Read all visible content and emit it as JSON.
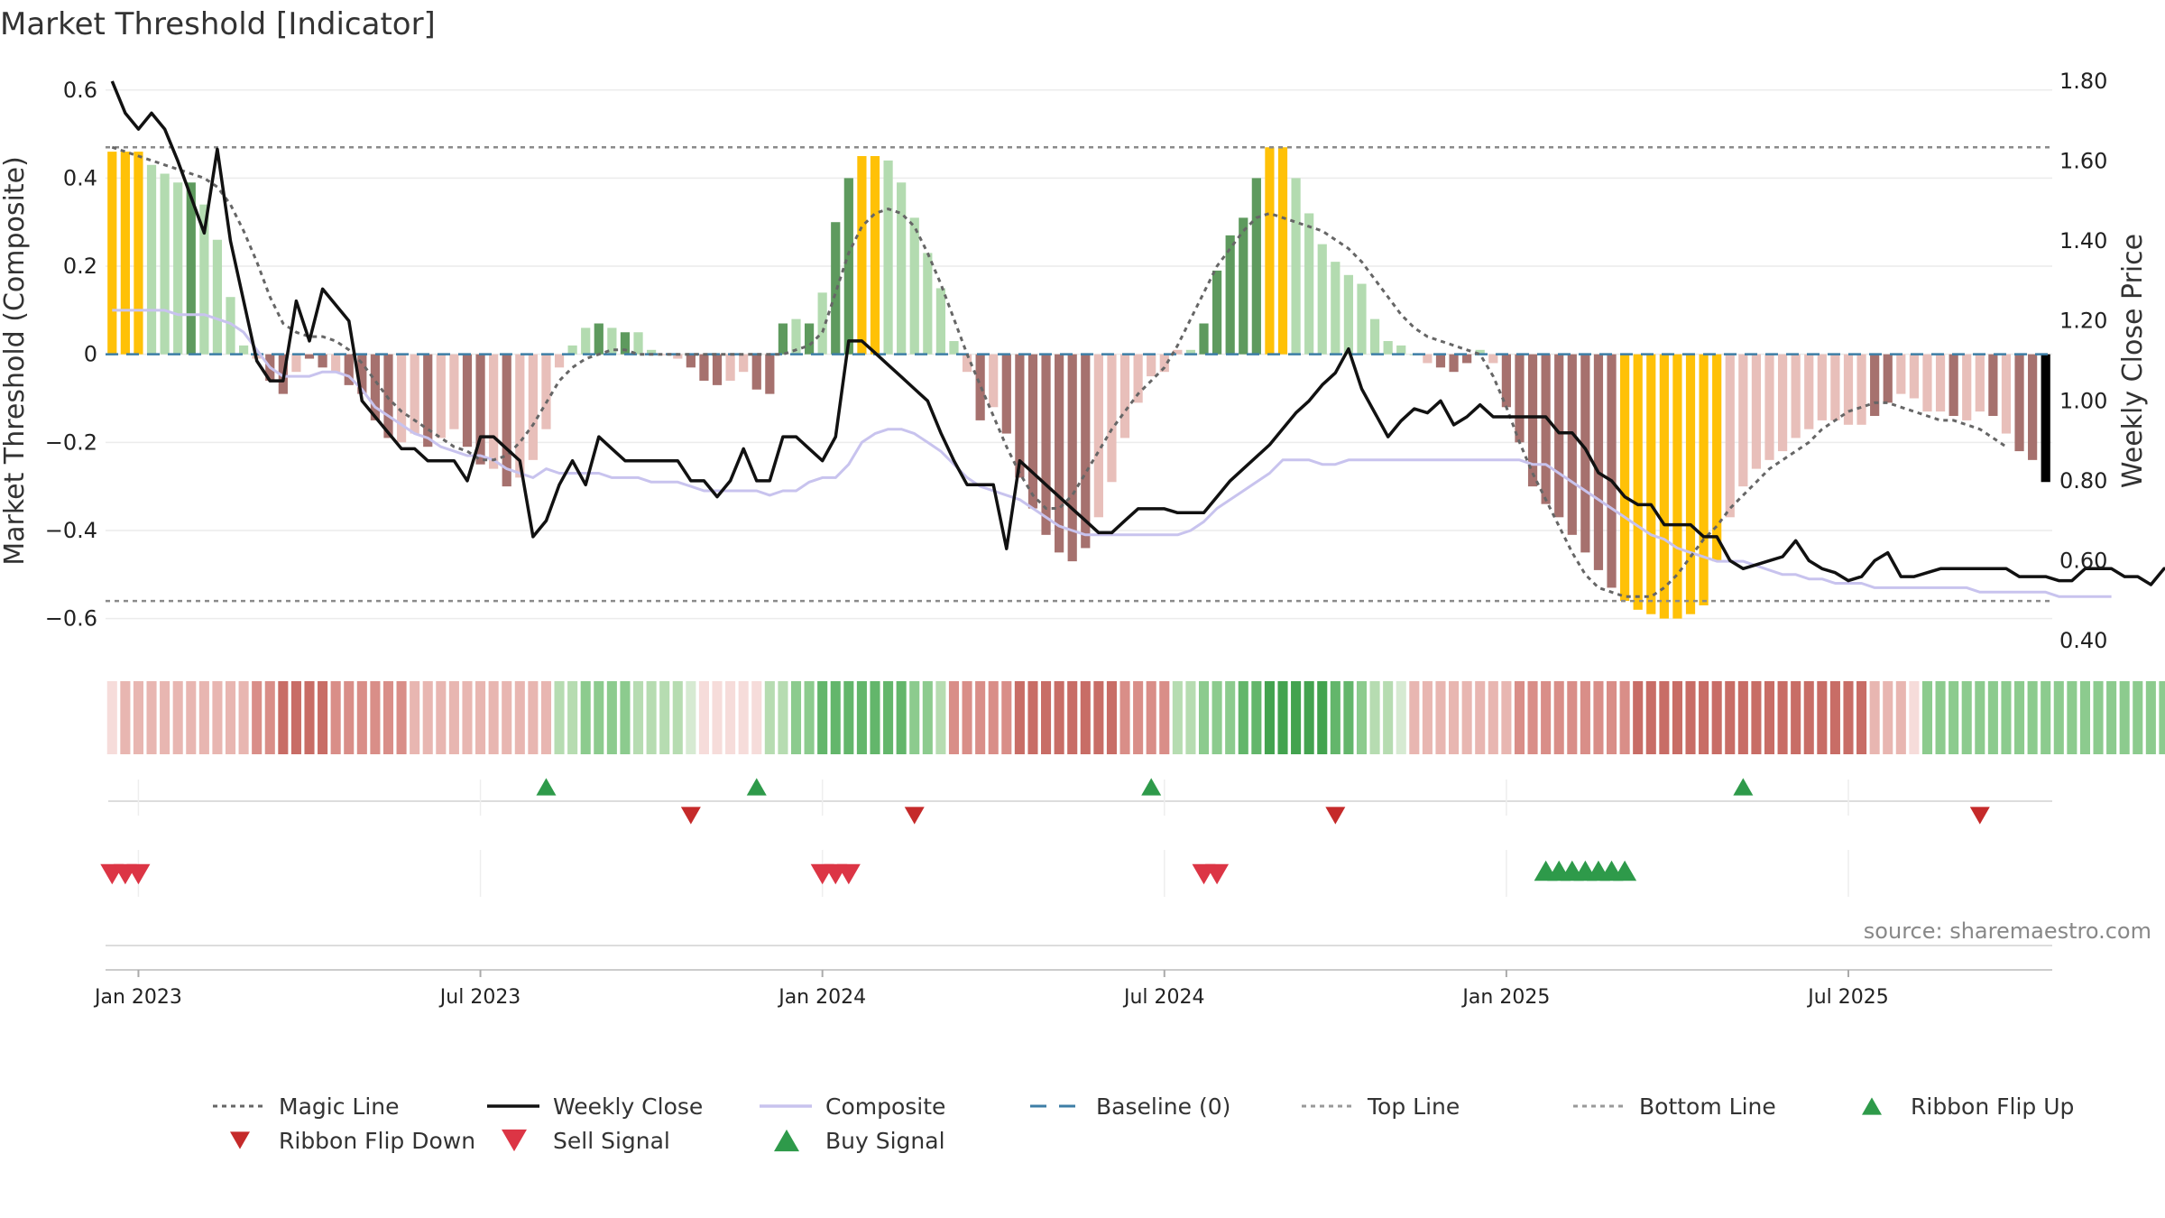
{
  "chart_data": {
    "type": "bar",
    "title": "Market Threshold [Indicator]",
    "ylabel_left": "Market Threshold (Composite)",
    "ylabel_right": "Weekly Close Price",
    "ylim_left": [
      -0.65,
      0.62
    ],
    "ylim_right": [
      0.4,
      1.8
    ],
    "yticks_left": [
      0.6,
      0.4,
      0.2,
      0,
      -0.2,
      -0.4,
      -0.6
    ],
    "ytick_labels_left": [
      "0.6",
      "0.4",
      "0.2",
      "0",
      "−0.2",
      "−0.4",
      "−0.6"
    ],
    "yticks_right": [
      1.8,
      1.6,
      1.4,
      1.2,
      1.0,
      0.8,
      0.6,
      0.4
    ],
    "ytick_labels_right": [
      "1.80",
      "1.60",
      "1.40",
      "1.20",
      "1.00",
      "0.80",
      "0.60",
      "0.40"
    ],
    "xticks": [
      {
        "week": 2,
        "label": "Jan 2023"
      },
      {
        "week": 28,
        "label": "Jul 2023"
      },
      {
        "week": 54,
        "label": "Jan 2024"
      },
      {
        "week": 80,
        "label": "Jul 2024"
      },
      {
        "week": 106,
        "label": "Jan 2025"
      },
      {
        "week": 132,
        "label": "Jul 2025"
      }
    ],
    "top_line": 0.47,
    "bottom_line": -0.56,
    "baseline": 0,
    "bar_category_colors": {
      "0": "#b3dbb0",
      "1": "#5e9a5e",
      "2": "#e8bfba",
      "3": "#a6716e",
      "4": "#ffc107"
    },
    "bars": [
      0.46,
      0.46,
      0.46,
      0.43,
      0.41,
      0.39,
      0.39,
      0.34,
      0.26,
      0.13,
      0.02,
      -0.01,
      -0.06,
      -0.09,
      -0.04,
      -0.01,
      -0.03,
      -0.04,
      -0.07,
      -0.09,
      -0.15,
      -0.19,
      -0.2,
      -0.18,
      -0.21,
      -0.19,
      -0.17,
      -0.21,
      -0.25,
      -0.26,
      -0.3,
      -0.28,
      -0.24,
      -0.17,
      -0.03,
      0.02,
      0.06,
      0.07,
      0.06,
      0.05,
      0.05,
      0.01,
      0,
      -0.01,
      -0.03,
      -0.06,
      -0.07,
      -0.06,
      -0.04,
      -0.08,
      -0.09,
      0.07,
      0.08,
      0.07,
      0.14,
      0.3,
      0.4,
      0.45,
      0.45,
      0.44,
      0.39,
      0.31,
      0.23,
      0.15,
      0.03,
      -0.04,
      -0.15,
      -0.12,
      -0.18,
      -0.28,
      -0.35,
      -0.41,
      -0.45,
      -0.47,
      -0.44,
      -0.37,
      -0.29,
      -0.19,
      -0.11,
      -0.05,
      -0.04,
      0.01,
      0.01,
      0.07,
      0.19,
      0.27,
      0.31,
      0.4,
      0.47,
      0.47,
      0.4,
      0.32,
      0.25,
      0.21,
      0.18,
      0.16,
      0.08,
      0.03,
      0.02,
      0,
      -0.02,
      -0.03,
      -0.04,
      -0.02,
      0.01,
      -0.02,
      -0.12,
      -0.2,
      -0.3,
      -0.34,
      -0.37,
      -0.41,
      -0.45,
      -0.49,
      -0.53,
      -0.56,
      -0.58,
      -0.59,
      -0.6,
      -0.6,
      -0.59,
      -0.57,
      -0.47,
      -0.37,
      -0.3,
      -0.26,
      -0.24,
      -0.22,
      -0.19,
      -0.17,
      -0.15,
      -0.15,
      -0.16,
      -0.16,
      -0.14,
      -0.11,
      -0.09,
      -0.1,
      -0.13,
      -0.13,
      -0.14,
      -0.15,
      -0.13,
      -0.14,
      -0.18,
      -0.22,
      -0.24,
      -0.29
    ],
    "bar_categories": [
      4,
      4,
      4,
      0,
      0,
      0,
      1,
      0,
      0,
      0,
      0,
      2,
      3,
      3,
      2,
      3,
      3,
      2,
      3,
      3,
      3,
      3,
      2,
      2,
      3,
      2,
      2,
      3,
      3,
      2,
      3,
      2,
      2,
      2,
      2,
      0,
      0,
      1,
      0,
      1,
      0,
      0,
      2,
      2,
      3,
      3,
      3,
      2,
      2,
      3,
      3,
      1,
      0,
      1,
      0,
      1,
      1,
      4,
      4,
      0,
      0,
      0,
      0,
      0,
      0,
      2,
      3,
      2,
      3,
      3,
      3,
      3,
      3,
      3,
      3,
      2,
      2,
      2,
      2,
      2,
      2,
      2,
      0,
      1,
      1,
      1,
      1,
      1,
      4,
      4,
      0,
      0,
      0,
      0,
      0,
      0,
      0,
      0,
      0,
      0,
      2,
      3,
      3,
      3,
      0,
      2,
      3,
      3,
      3,
      3,
      3,
      3,
      3,
      3,
      3,
      4,
      4,
      4,
      4,
      4,
      4,
      4,
      4,
      2,
      2,
      2,
      2,
      2,
      2,
      2,
      2,
      2,
      2,
      2,
      3,
      3,
      2,
      2,
      2,
      2,
      3,
      2,
      2,
      3,
      2,
      3,
      3
    ],
    "series": [
      {
        "name": "Magic Line",
        "axis": "left",
        "values": [
          0.47,
          0.46,
          0.45,
          0.44,
          0.43,
          0.42,
          0.41,
          0.4,
          0.38,
          0.34,
          0.28,
          0.21,
          0.13,
          0.07,
          0.05,
          0.04,
          0.04,
          0.03,
          0.01,
          -0.02,
          -0.06,
          -0.1,
          -0.13,
          -0.15,
          -0.17,
          -0.19,
          -0.21,
          -0.22,
          -0.24,
          -0.24,
          -0.23,
          -0.2,
          -0.16,
          -0.11,
          -0.06,
          -0.03,
          -0.01,
          0,
          0.01,
          0.01,
          0,
          0,
          0,
          0,
          0,
          0,
          0,
          0,
          0,
          0,
          0,
          0,
          0.01,
          0.02,
          0.05,
          0.14,
          0.23,
          0.29,
          0.32,
          0.33,
          0.32,
          0.29,
          0.23,
          0.16,
          0.08,
          0,
          -0.07,
          -0.14,
          -0.21,
          -0.27,
          -0.32,
          -0.35,
          -0.35,
          -0.32,
          -0.27,
          -0.22,
          -0.17,
          -0.13,
          -0.09,
          -0.06,
          -0.03,
          0.02,
          0.08,
          0.14,
          0.2,
          0.24,
          0.28,
          0.31,
          0.32,
          0.31,
          0.3,
          0.29,
          0.28,
          0.26,
          0.24,
          0.21,
          0.17,
          0.13,
          0.09,
          0.06,
          0.04,
          0.03,
          0.02,
          0.01,
          0,
          -0.05,
          -0.12,
          -0.2,
          -0.27,
          -0.33,
          -0.39,
          -0.45,
          -0.5,
          -0.53,
          -0.54,
          -0.55,
          -0.55,
          -0.55,
          -0.53,
          -0.5,
          -0.46,
          -0.42,
          -0.39,
          -0.35,
          -0.32,
          -0.29,
          -0.26,
          -0.24,
          -0.22,
          -0.2,
          -0.17,
          -0.15,
          -0.13,
          -0.12,
          -0.11,
          -0.11,
          -0.12,
          -0.13,
          -0.14,
          -0.15,
          -0.15,
          -0.16,
          -0.17,
          -0.19,
          -0.21
        ]
      },
      {
        "name": "Weekly Close",
        "axis": "right",
        "values": [
          1.8,
          1.72,
          1.68,
          1.72,
          1.68,
          1.6,
          1.51,
          1.42,
          1.63,
          1.4,
          1.25,
          1.1,
          1.05,
          1.05,
          1.25,
          1.15,
          1.28,
          1.24,
          1.2,
          1.0,
          0.96,
          0.92,
          0.88,
          0.88,
          0.85,
          0.85,
          0.85,
          0.8,
          0.91,
          0.91,
          0.88,
          0.85,
          0.66,
          0.7,
          0.79,
          0.85,
          0.79,
          0.91,
          0.88,
          0.85,
          0.85,
          0.85,
          0.85,
          0.85,
          0.8,
          0.8,
          0.76,
          0.8,
          0.88,
          0.8,
          0.8,
          0.91,
          0.91,
          0.88,
          0.85,
          0.91,
          1.15,
          1.15,
          1.12,
          1.09,
          1.06,
          1.03,
          1.0,
          0.92,
          0.85,
          0.79,
          0.79,
          0.79,
          0.63,
          0.85,
          0.82,
          0.79,
          0.76,
          0.73,
          0.7,
          0.67,
          0.67,
          0.7,
          0.73,
          0.73,
          0.73,
          0.72,
          0.72,
          0.72,
          0.76,
          0.8,
          0.83,
          0.86,
          0.89,
          0.93,
          0.97,
          1.0,
          1.04,
          1.07,
          1.13,
          1.03,
          0.97,
          0.91,
          0.95,
          0.98,
          0.97,
          1.0,
          0.94,
          0.96,
          0.99,
          0.96,
          0.96,
          0.96,
          0.96,
          0.96,
          0.92,
          0.92,
          0.88,
          0.82,
          0.8,
          0.76,
          0.74,
          0.74,
          0.69,
          0.69,
          0.69,
          0.66,
          0.66,
          0.6,
          0.58,
          0.59,
          0.6,
          0.61,
          0.65,
          0.6,
          0.58,
          0.57,
          0.55,
          0.56,
          0.6,
          0.62,
          0.56,
          0.56,
          0.57,
          0.58,
          0.58,
          0.58,
          0.58,
          0.58,
          0.58,
          0.56,
          0.56,
          0.56,
          0.55,
          0.55,
          0.58,
          0.58,
          0.58,
          0.56,
          0.56,
          0.54,
          0.58,
          0.58
        ]
      },
      {
        "name": "Composite",
        "axis": "left",
        "values": [
          0.1,
          0.1,
          0.1,
          0.1,
          0.1,
          0.09,
          0.09,
          0.09,
          0.08,
          0.07,
          0.05,
          0.01,
          -0.03,
          -0.05,
          -0.05,
          -0.05,
          -0.04,
          -0.04,
          -0.05,
          -0.08,
          -0.12,
          -0.14,
          -0.16,
          -0.18,
          -0.19,
          -0.21,
          -0.22,
          -0.23,
          -0.23,
          -0.24,
          -0.26,
          -0.27,
          -0.28,
          -0.26,
          -0.27,
          -0.27,
          -0.27,
          -0.27,
          -0.28,
          -0.28,
          -0.28,
          -0.29,
          -0.29,
          -0.29,
          -0.3,
          -0.31,
          -0.31,
          -0.31,
          -0.31,
          -0.31,
          -0.32,
          -0.31,
          -0.31,
          -0.29,
          -0.28,
          -0.28,
          -0.25,
          -0.2,
          -0.18,
          -0.17,
          -0.17,
          -0.18,
          -0.2,
          -0.22,
          -0.25,
          -0.28,
          -0.3,
          -0.31,
          -0.32,
          -0.33,
          -0.35,
          -0.37,
          -0.39,
          -0.4,
          -0.41,
          -0.41,
          -0.41,
          -0.41,
          -0.41,
          -0.41,
          -0.41,
          -0.41,
          -0.4,
          -0.38,
          -0.35,
          -0.33,
          -0.31,
          -0.29,
          -0.27,
          -0.24,
          -0.24,
          -0.24,
          -0.25,
          -0.25,
          -0.24,
          -0.24,
          -0.24,
          -0.24,
          -0.24,
          -0.24,
          -0.24,
          -0.24,
          -0.24,
          -0.24,
          -0.24,
          -0.24,
          -0.24,
          -0.24,
          -0.25,
          -0.25,
          -0.27,
          -0.29,
          -0.31,
          -0.33,
          -0.35,
          -0.37,
          -0.39,
          -0.41,
          -0.42,
          -0.44,
          -0.45,
          -0.46,
          -0.47,
          -0.47,
          -0.47,
          -0.48,
          -0.49,
          -0.5,
          -0.5,
          -0.51,
          -0.51,
          -0.52,
          -0.52,
          -0.52,
          -0.53,
          -0.53,
          -0.53,
          -0.53,
          -0.53,
          -0.53,
          -0.53,
          -0.53,
          -0.54,
          -0.54,
          -0.54,
          -0.54,
          -0.54,
          -0.54,
          -0.55,
          -0.55,
          -0.55,
          -0.55,
          -0.55
        ]
      },
      {
        "name": "Baseline (0)",
        "axis": "left",
        "values": [
          0
        ]
      },
      {
        "name": "Top Line",
        "axis": "left",
        "values": [
          0.47
        ]
      },
      {
        "name": "Bottom Line",
        "axis": "left",
        "values": [
          -0.56
        ]
      }
    ],
    "ribbon_palette": [
      "#f6dcda",
      "#e8b6b1",
      "#d98e88",
      "#c86d66",
      "#d6ead2",
      "#b6dcb1",
      "#8ccb8e",
      "#63b66b",
      "#43a34f"
    ],
    "ribbon_levels": [
      0,
      1,
      1,
      1,
      1,
      1,
      1,
      1,
      1,
      1,
      1,
      2,
      2,
      2,
      2,
      2,
      2,
      2,
      2,
      2,
      2,
      2,
      2,
      1,
      1,
      1,
      1,
      1,
      1,
      1,
      1,
      1,
      1,
      1,
      1,
      2,
      2,
      2,
      2,
      2,
      2,
      2,
      2,
      2,
      2,
      2,
      2,
      2,
      2,
      2,
      2,
      2,
      2,
      2,
      2,
      2,
      3,
      3,
      3,
      3,
      3,
      3,
      3,
      3,
      3,
      3,
      3,
      3,
      3,
      3,
      3,
      3,
      3,
      3,
      3,
      3,
      3,
      3,
      3,
      3,
      4,
      4,
      4,
      4,
      4,
      4,
      4,
      4,
      4,
      4,
      4,
      4,
      4,
      4,
      4,
      4,
      4,
      4,
      4,
      4,
      4,
      4,
      4,
      4,
      4,
      4,
      4,
      4,
      4,
      4,
      4,
      4,
      4,
      4,
      4,
      4,
      4,
      4,
      4,
      4,
      4,
      4,
      4,
      4,
      4,
      4,
      4,
      4,
      4,
      4,
      4,
      4,
      4,
      4,
      4,
      4,
      4,
      4,
      4,
      4,
      4,
      4,
      4,
      4,
      4,
      4,
      4,
      4,
      4,
      4,
      4,
      4,
      4
    ],
    "ribbon_colors": [
      0,
      1,
      1,
      1,
      1,
      1,
      1,
      1,
      1,
      1,
      1,
      2,
      2,
      3,
      3,
      3,
      3,
      2,
      2,
      2,
      2,
      2,
      2,
      1,
      1,
      1,
      1,
      1,
      1,
      1,
      1,
      1,
      1,
      1,
      5,
      5,
      6,
      6,
      6,
      6,
      5,
      5,
      5,
      5,
      4,
      0,
      0,
      0,
      0,
      0,
      5,
      5,
      6,
      6,
      7,
      7,
      7,
      7,
      7,
      7,
      7,
      6,
      6,
      5,
      2,
      2,
      2,
      2,
      2,
      3,
      3,
      3,
      3,
      3,
      3,
      3,
      3,
      2,
      2,
      2,
      2,
      5,
      5,
      6,
      6,
      6,
      7,
      7,
      8,
      8,
      8,
      8,
      8,
      7,
      7,
      6,
      5,
      5,
      4,
      1,
      1,
      1,
      1,
      1,
      1,
      1,
      1,
      2,
      2,
      2,
      2,
      2,
      2,
      2,
      2,
      2,
      3,
      3,
      3,
      3,
      3,
      3,
      3,
      3,
      3,
      3,
      3,
      3,
      3,
      3,
      3,
      3,
      3,
      3,
      1,
      1,
      1,
      0,
      6,
      6,
      6,
      6,
      6,
      6,
      6,
      6,
      6,
      6,
      6,
      6,
      6,
      6,
      6,
      6,
      6,
      6,
      6,
      6,
      6,
      5,
      5,
      0
    ],
    "ribbon_flip_up_weeks": [
      33,
      49,
      79,
      124
    ],
    "ribbon_flip_down_weeks": [
      44,
      61,
      93,
      142
    ],
    "sell_signal_weeks": [
      0,
      1,
      2,
      54,
      55,
      56,
      83,
      84
    ],
    "buy_signal_weeks": [
      109,
      110,
      111,
      112,
      113,
      114,
      115
    ],
    "legend": [
      {
        "name": "Magic Line",
        "style": "dotted",
        "color": "#666666"
      },
      {
        "name": "Weekly Close",
        "style": "solid",
        "color": "#111111"
      },
      {
        "name": "Composite",
        "style": "solid",
        "color": "#c8c3ee"
      },
      {
        "name": "Baseline (0)",
        "style": "dashed",
        "color": "#3d7ea6"
      },
      {
        "name": "Top Line",
        "style": "dotted",
        "color": "#999999"
      },
      {
        "name": "Bottom Line",
        "style": "dotted",
        "color": "#999999"
      },
      {
        "name": "Ribbon Flip Up",
        "style": "triangle-up",
        "color": "#2e9a4a"
      },
      {
        "name": "Ribbon Flip Down",
        "style": "triangle-down",
        "color": "#c52a2a"
      },
      {
        "name": "Sell Signal",
        "style": "triangle-down",
        "color": "#dc3545"
      },
      {
        "name": "Buy Signal",
        "style": "triangle-up",
        "color": "#2e9a4a"
      }
    ],
    "source": "source: sharemaestro.com"
  }
}
